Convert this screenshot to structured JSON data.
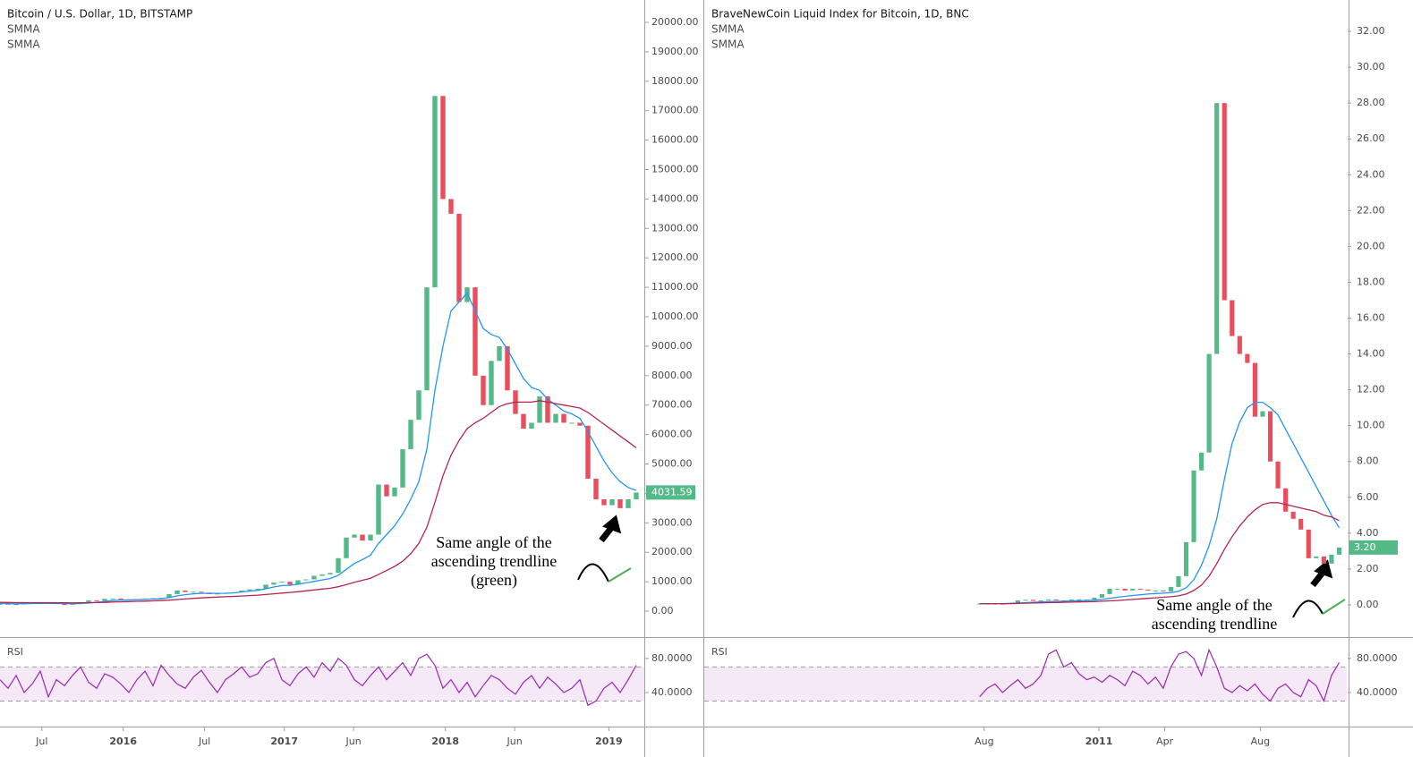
{
  "chart_data": [
    {
      "type": "candlestick",
      "title": "Bitcoin / U.S. Dollar, 1D, BITSTAMP",
      "xlim": [
        0,
        80
      ],
      "xticks": [
        {
          "value": 5.2,
          "label": "Jul"
        },
        {
          "value": 15.3,
          "label": "2016"
        },
        {
          "value": 25.4,
          "label": "Jul"
        },
        {
          "value": 35.3,
          "label": "2017"
        },
        {
          "value": 43.9,
          "label": "Jun"
        },
        {
          "value": 55.3,
          "label": "2018"
        },
        {
          "value": 63.9,
          "label": "Jun"
        },
        {
          "value": 75.6,
          "label": "2019"
        }
      ],
      "ylim": [
        -820,
        20760
      ],
      "yticks": [
        {
          "value": 0,
          "label": "0.00"
        },
        {
          "value": 1000,
          "label": "1000.00"
        },
        {
          "value": 2000,
          "label": "2000.00"
        },
        {
          "value": 3000,
          "label": "3000.00"
        },
        {
          "value": 4000,
          "label": "4000.00"
        },
        {
          "value": 5000,
          "label": "5000.00"
        },
        {
          "value": 6000,
          "label": "6000.00"
        },
        {
          "value": 7000,
          "label": "7000.00"
        },
        {
          "value": 8000,
          "label": "8000.00"
        },
        {
          "value": 9000,
          "label": "9000.00"
        },
        {
          "value": 10000,
          "label": "10000.00"
        },
        {
          "value": 11000,
          "label": "11000.00"
        },
        {
          "value": 12000,
          "label": "12000.00"
        },
        {
          "value": 13000,
          "label": "13000.00"
        },
        {
          "value": 14000,
          "label": "14000.00"
        },
        {
          "value": 15000,
          "label": "15000.00"
        },
        {
          "value": 16000,
          "label": "16000.00"
        },
        {
          "value": 17000,
          "label": "17000.00"
        },
        {
          "value": 18000,
          "label": "18000.00"
        },
        {
          "value": 19000,
          "label": "19000.00"
        },
        {
          "value": 20000,
          "label": "20000.00"
        }
      ],
      "price": {
        "up_color": "#53b987",
        "down_color": "#eb4d5c",
        "label_color": "#53b987",
        "values": [
          250,
          240,
          230,
          260,
          280,
          290,
          270,
          240,
          230,
          250,
          300,
          370,
          350,
          420,
          430,
          400,
          380,
          410,
          420,
          440,
          450,
          580,
          700,
          650,
          660,
          630,
          580,
          600,
          620,
          640,
          700,
          740,
          760,
          900,
          970,
          1000,
          900,
          1050,
          1080,
          1200,
          1250,
          1300,
          1800,
          2500,
          2600,
          2400,
          2600,
          4300,
          3900,
          4200,
          5500,
          6500,
          7500,
          11000,
          17500,
          14000,
          13500,
          10500,
          11000,
          8000,
          7000,
          8500,
          9000,
          7500,
          6700,
          6200,
          6400,
          7300,
          6400,
          6700,
          6400,
          6400,
          6300,
          4500,
          3800,
          3600,
          3800,
          3500,
          3800,
          4031.59
        ]
      },
      "series": [
        {
          "name": "SMMA",
          "color": "#2196f3",
          "values": [
            260,
            255,
            250,
            252,
            258,
            265,
            268,
            262,
            255,
            252,
            260,
            280,
            300,
            330,
            360,
            375,
            380,
            390,
            400,
            410,
            420,
            460,
            520,
            560,
            590,
            605,
            605,
            605,
            610,
            620,
            650,
            680,
            710,
            760,
            820,
            870,
            880,
            920,
            960,
            1010,
            1060,
            1110,
            1220,
            1420,
            1620,
            1750,
            1900,
            2300,
            2600,
            2900,
            3300,
            3800,
            4400,
            5500,
            7500,
            9000,
            10200,
            10500,
            10800,
            10200,
            9600,
            9400,
            9300,
            8900,
            8400,
            7900,
            7600,
            7500,
            7200,
            7000,
            6800,
            6700,
            6550,
            6100,
            5600,
            5100,
            4700,
            4400,
            4200,
            4100
          ]
        },
        {
          "name": "SMMA",
          "color": "#b5254f",
          "values": [
            300,
            295,
            290,
            288,
            287,
            287,
            286,
            284,
            282,
            281,
            282,
            286,
            292,
            300,
            310,
            318,
            326,
            334,
            342,
            350,
            360,
            375,
            395,
            415,
            435,
            452,
            465,
            478,
            490,
            502,
            515,
            530,
            545,
            565,
            590,
            615,
            635,
            660,
            690,
            720,
            750,
            780,
            830,
            900,
            980,
            1050,
            1120,
            1250,
            1380,
            1520,
            1700,
            1950,
            2300,
            2850,
            3700,
            4600,
            5300,
            5800,
            6200,
            6400,
            6550,
            6750,
            6950,
            7050,
            7100,
            7100,
            7100,
            7150,
            7100,
            7050,
            7000,
            6950,
            6900,
            6750,
            6550,
            6350,
            6150,
            5950,
            5750,
            5550
          ]
        }
      ],
      "rsi": {
        "label": "RSI",
        "color": "#9c27b0",
        "ylim": [
          0,
          104
        ],
        "yticks": [
          {
            "value": 80,
            "label": "80.0000"
          },
          {
            "value": 40,
            "label": "40.0000"
          }
        ],
        "bands": [
          30,
          70
        ],
        "values": [
          55,
          45,
          60,
          40,
          50,
          65,
          35,
          55,
          48,
          60,
          70,
          52,
          45,
          62,
          58,
          50,
          40,
          55,
          65,
          48,
          72,
          60,
          50,
          45,
          58,
          66,
          52,
          40,
          55,
          62,
          70,
          58,
          62,
          75,
          80,
          55,
          48,
          62,
          70,
          58,
          75,
          65,
          80,
          72,
          55,
          48,
          60,
          70,
          55,
          65,
          75,
          60,
          80,
          85,
          72,
          45,
          55,
          40,
          52,
          35,
          48,
          60,
          55,
          45,
          38,
          52,
          60,
          45,
          58,
          50,
          40,
          45,
          55,
          25,
          30,
          45,
          52,
          40,
          55,
          72
        ]
      },
      "annotation": [
        "Same angle of the",
        "ascending trendline",
        "(green)"
      ]
    },
    {
      "type": "candlestick",
      "title": "BraveNewCoin Liquid Index for Bitcoin, 1D, BNC",
      "xlim": [
        -36,
        48
      ],
      "xticks": [
        {
          "value": 0.6,
          "label": "Aug"
        },
        {
          "value": 15.6,
          "label": "2011"
        },
        {
          "value": 24.2,
          "label": "Apr"
        },
        {
          "value": 36.7,
          "label": "Aug"
        }
      ],
      "ylim": [
        -1.7,
        33.75
      ],
      "yticks": [
        {
          "value": 0,
          "label": "0.00"
        },
        {
          "value": 2,
          "label": "2.00"
        },
        {
          "value": 4,
          "label": "4.00"
        },
        {
          "value": 6,
          "label": "6.00"
        },
        {
          "value": 8,
          "label": "8.00"
        },
        {
          "value": 10,
          "label": "10.00"
        },
        {
          "value": 12,
          "label": "12.00"
        },
        {
          "value": 14,
          "label": "14.00"
        },
        {
          "value": 16,
          "label": "16.00"
        },
        {
          "value": 18,
          "label": "18.00"
        },
        {
          "value": 20,
          "label": "20.00"
        },
        {
          "value": 22,
          "label": "22.00"
        },
        {
          "value": 24,
          "label": "24.00"
        },
        {
          "value": 26,
          "label": "26.00"
        },
        {
          "value": 28,
          "label": "28.00"
        },
        {
          "value": 30,
          "label": "30.00"
        },
        {
          "value": 32,
          "label": "32.00"
        }
      ],
      "price": {
        "up_color": "#53b987",
        "down_color": "#eb4d5c",
        "label_color": "#53b987",
        "values": [
          0.07,
          0.07,
          0.06,
          0.06,
          0.1,
          0.25,
          0.28,
          0.22,
          0.25,
          0.3,
          0.25,
          0.2,
          0.3,
          0.3,
          0.3,
          0.4,
          0.6,
          0.9,
          0.9,
          0.8,
          0.9,
          0.85,
          0.8,
          0.8,
          0.75,
          1.0,
          1.6,
          3.5,
          7.5,
          8.5,
          14,
          28,
          17,
          15,
          14,
          13.5,
          10.5,
          10.8,
          8,
          6.5,
          5.2,
          4.8,
          4.2,
          2.6,
          2.7,
          2.3,
          2.8,
          3.2
        ],
        "value_labels": [
          null,
          null,
          null,
          null,
          null,
          null,
          null,
          null,
          null,
          null,
          null,
          null,
          null,
          null,
          null,
          null,
          null,
          null,
          null,
          null,
          null,
          null,
          null,
          null,
          null,
          null,
          null,
          null,
          null,
          null,
          null,
          null,
          null,
          null,
          null,
          null,
          null,
          null,
          null,
          null,
          null,
          null,
          null,
          null,
          null,
          null,
          null,
          "3.20"
        ]
      },
      "series": [
        {
          "name": "SMMA",
          "color": "#2196f3",
          "values": [
            0.07,
            0.07,
            0.07,
            0.07,
            0.08,
            0.1,
            0.12,
            0.14,
            0.16,
            0.18,
            0.19,
            0.2,
            0.21,
            0.23,
            0.24,
            0.26,
            0.3,
            0.36,
            0.42,
            0.47,
            0.52,
            0.56,
            0.6,
            0.63,
            0.65,
            0.68,
            0.75,
            0.95,
            1.4,
            2.2,
            3.3,
            4.8,
            7,
            9,
            10.2,
            11,
            11.3,
            11.3,
            11,
            10.6,
            9.8,
            9,
            8.2,
            7.4,
            6.6,
            5.8,
            5.0,
            4.3
          ]
        },
        {
          "name": "SMMA",
          "color": "#b5254f",
          "values": [
            0.07,
            0.07,
            0.07,
            0.07,
            0.07,
            0.08,
            0.09,
            0.1,
            0.11,
            0.12,
            0.13,
            0.14,
            0.15,
            0.16,
            0.17,
            0.18,
            0.2,
            0.22,
            0.24,
            0.27,
            0.3,
            0.33,
            0.36,
            0.39,
            0.42,
            0.45,
            0.5,
            0.6,
            0.8,
            1.1,
            1.6,
            2.3,
            3.1,
            3.8,
            4.4,
            4.9,
            5.3,
            5.6,
            5.7,
            5.7,
            5.6,
            5.5,
            5.4,
            5.3,
            5.2,
            5.0,
            4.9,
            4.7
          ]
        }
      ],
      "rsi": {
        "label": "RSI",
        "color": "#9c27b0",
        "ylim": [
          0,
          104
        ],
        "yticks": [
          {
            "value": 80,
            "label": "80.0000"
          },
          {
            "value": 40,
            "label": "40.0000"
          }
        ],
        "bands": [
          30,
          70
        ],
        "values": [
          35,
          45,
          50,
          40,
          48,
          55,
          45,
          50,
          60,
          85,
          90,
          70,
          75,
          62,
          55,
          58,
          52,
          60,
          55,
          48,
          65,
          60,
          50,
          58,
          45,
          70,
          85,
          88,
          80,
          60,
          90,
          70,
          45,
          40,
          48,
          42,
          50,
          38,
          30,
          45,
          50,
          40,
          35,
          55,
          48,
          30,
          60,
          75
        ]
      },
      "annotation": [
        "Same angle of the",
        "ascending trendline"
      ]
    }
  ]
}
